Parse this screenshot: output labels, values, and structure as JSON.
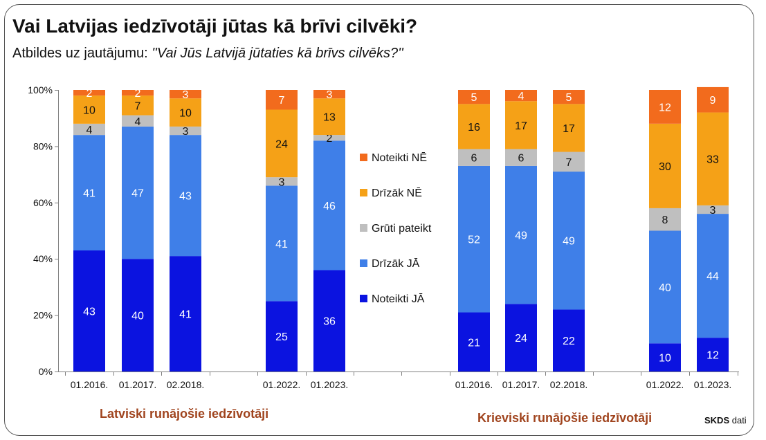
{
  "title": "Vai Latvijas iedzīvotāji jūtas kā brīvi cilvēki?",
  "subtitle_prefix": "Atbildes uz jautājumu: ",
  "subtitle_question": "''Vai Jūs Latvijā jūtaties kā brīvs cilvēks?''",
  "source_brand": "SKDS",
  "source_suffix": " dati",
  "colors": {
    "noteikti_ne": "#f26b1d",
    "drizak_ne": "#f5a117",
    "gruti": "#bfbfbf",
    "drizak_ja": "#3f7fe8",
    "noteikti_ja": "#0b13e0"
  },
  "chart_data": {
    "type": "bar",
    "stacked": true,
    "ylim": [
      0,
      100
    ],
    "yticks": [
      "0%",
      "20%",
      "40%",
      "60%",
      "80%",
      "100%"
    ],
    "groups": [
      {
        "label": "Latviski runājošie iedzīvotāji",
        "categories": [
          "01.2016.",
          "01.2017.",
          "02.2018.",
          "01.2022.",
          "01.2023."
        ]
      },
      {
        "label": "Krieviski runājošie iedzīvotāji",
        "categories": [
          "01.2016.",
          "01.2017.",
          "02.2018.",
          "01.2022.",
          "01.2023."
        ]
      }
    ],
    "categories": [
      "01.2016.",
      "01.2017.",
      "02.2018.",
      "01.2022.",
      "01.2023.",
      "01.2016.",
      "01.2017.",
      "02.2018.",
      "01.2022.",
      "01.2023."
    ],
    "series": [
      {
        "name": "Noteikti JĀ",
        "color": "#0b13e0",
        "values": [
          43,
          40,
          41,
          25,
          36,
          21,
          24,
          22,
          10,
          12
        ]
      },
      {
        "name": "Drīzāk JĀ",
        "color": "#3f7fe8",
        "values": [
          41,
          47,
          43,
          41,
          46,
          52,
          49,
          49,
          40,
          44
        ]
      },
      {
        "name": "Grūti pateikt",
        "color": "#bfbfbf",
        "values": [
          4,
          4,
          3,
          3,
          2,
          6,
          6,
          7,
          8,
          3
        ]
      },
      {
        "name": "Drīzāk NĒ",
        "color": "#f5a117",
        "values": [
          10,
          7,
          10,
          24,
          13,
          16,
          17,
          17,
          30,
          33
        ]
      },
      {
        "name": "Noteikti NĒ",
        "color": "#f26b1d",
        "values": [
          2,
          2,
          3,
          7,
          3,
          5,
          4,
          5,
          12,
          9
        ]
      }
    ],
    "legend": [
      "Noteikti NĒ",
      "Drīzāk NĒ",
      "Grūti pateikt",
      "Drīzāk JĀ",
      "Noteikti JĀ"
    ],
    "legend_position": "center"
  }
}
